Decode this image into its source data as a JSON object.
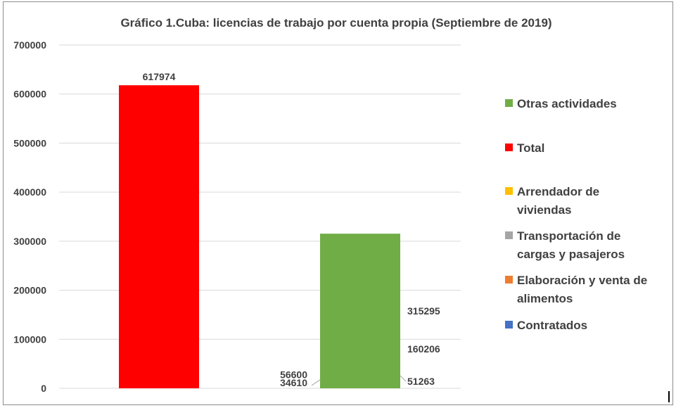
{
  "chart_data": {
    "type": "bar",
    "title": "Gráfico 1.Cuba: licencias de trabajo por cuenta propia (Septiembre de 2019)",
    "xlabel": "",
    "ylabel": "",
    "ylim": [
      0,
      700000
    ],
    "yticks": [
      0,
      100000,
      200000,
      300000,
      400000,
      500000,
      600000,
      700000
    ],
    "grid": true,
    "legend_position": "right",
    "stacked": true,
    "bars": [
      {
        "segments": [
          {
            "name": "Total",
            "value": 617974,
            "label": "617974",
            "color": "#ff0000",
            "label_position": "top"
          }
        ]
      },
      {
        "segments": [
          {
            "name": "Contratados",
            "value": 160206,
            "label": "160206",
            "color": "#4472c4",
            "label_position": "right"
          },
          {
            "name": "Elaboración y venta de alimentos",
            "value": 56600,
            "label": "56600",
            "color": "#ed7d31",
            "label_position": "left"
          },
          {
            "name": "Transportación de cargas y pasajeros",
            "value": 51263,
            "label": "51263",
            "color": "#a5a5a5",
            "label_position": "right"
          },
          {
            "name": "Arrendador de viviendas",
            "value": 34610,
            "label": "34610",
            "color": "#ffc000",
            "label_position": "left"
          },
          {
            "name": "Otras actividades",
            "value": 315295,
            "label": "315295",
            "color": "#70ad47",
            "label_position": "right"
          }
        ]
      }
    ],
    "legend": [
      {
        "lines": [
          "Otras actividades"
        ],
        "color": "#70ad47"
      },
      {
        "lines": [
          "Total"
        ],
        "color": "#ff0000"
      },
      {
        "lines": [
          "Arrendador de",
          "viviendas"
        ],
        "color": "#ffc000"
      },
      {
        "lines": [
          "Transportación de",
          "cargas y pasajeros"
        ],
        "color": "#a5a5a5"
      },
      {
        "lines": [
          "Elaboración y venta de",
          "alimentos"
        ],
        "color": "#ed7d31"
      },
      {
        "lines": [
          "Contratados"
        ],
        "color": "#4472c4"
      }
    ]
  }
}
